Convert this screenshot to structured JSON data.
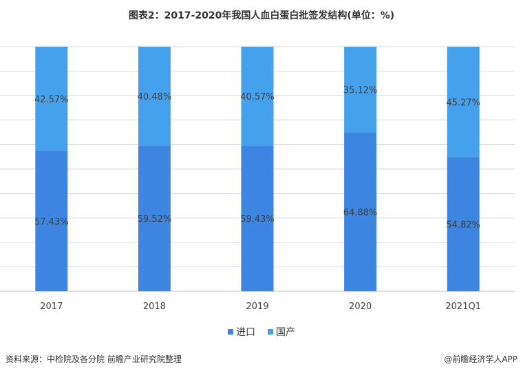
{
  "title": "图表2：2017-2020年我国人血白蛋白批签发结构(单位：%)",
  "source": "资料来源：中检院及各分院 前瞻产业研究院整理",
  "credit": "@前瞻经济学人APP",
  "colors": {
    "import": "#3d85e0",
    "domestic": "#46a1ed",
    "grid": "#d9d9d9",
    "axis": "#bfbfbf"
  },
  "chart_data": {
    "type": "bar",
    "stacked": true,
    "categories": [
      "2017",
      "2018",
      "2019",
      "2020",
      "2021Q1"
    ],
    "series": [
      {
        "name": "进口",
        "values": [
          57.43,
          59.52,
          59.43,
          64.88,
          54.82
        ],
        "labels": [
          "57.43%",
          "59.52%",
          "59.43%",
          "64.88%",
          "54.82%"
        ]
      },
      {
        "name": "国产",
        "values": [
          42.57,
          40.48,
          40.57,
          35.12,
          45.27
        ],
        "labels": [
          "42.57%",
          "40.48%",
          "40.57%",
          "35.12%",
          "45.27%"
        ]
      }
    ],
    "ylim": [
      0,
      100
    ],
    "grid": true,
    "legend": "bottom-center"
  }
}
